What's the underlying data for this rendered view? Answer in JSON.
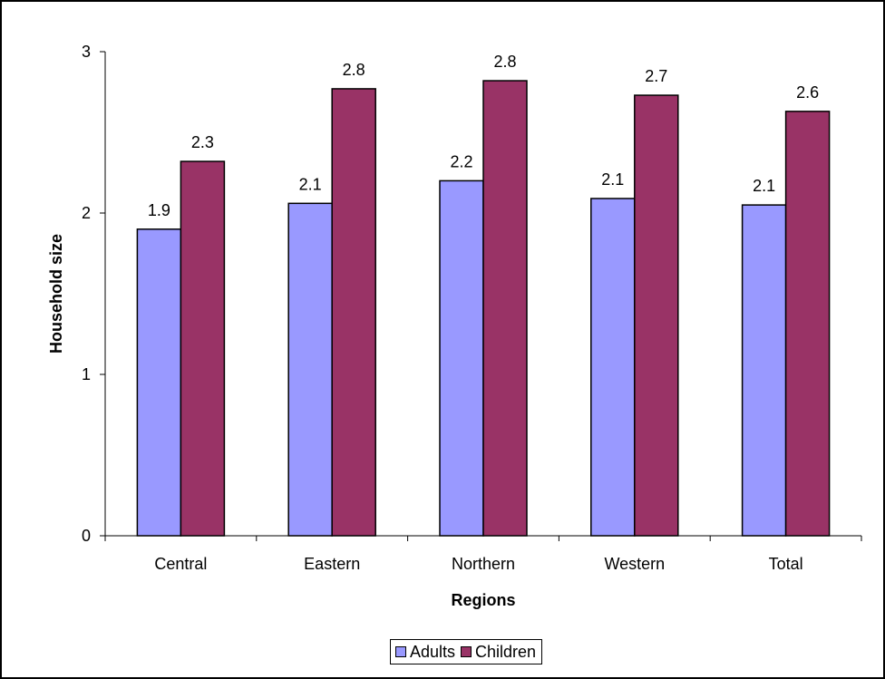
{
  "chart_data": {
    "type": "bar",
    "title": "",
    "xlabel": "Regions",
    "ylabel": "Household size",
    "categories": [
      "Central",
      "Eastern",
      "Northern",
      "Western",
      "Total"
    ],
    "series": [
      {
        "name": "Adults",
        "color": "#9999ff",
        "values": [
          1.9,
          2.06,
          2.2,
          2.09,
          2.05
        ],
        "labels": [
          "1.9",
          "2.1",
          "2.2",
          "2.1",
          "2.1"
        ]
      },
      {
        "name": "Children",
        "color": "#993366",
        "values": [
          2.32,
          2.77,
          2.82,
          2.73,
          2.63
        ],
        "labels": [
          "2.3",
          "2.8",
          "2.8",
          "2.7",
          "2.6"
        ]
      }
    ],
    "ylim": [
      0,
      3
    ],
    "yticks": [
      "0",
      "1",
      "2",
      "3"
    ],
    "grid": false,
    "legend_position": "bottom"
  }
}
